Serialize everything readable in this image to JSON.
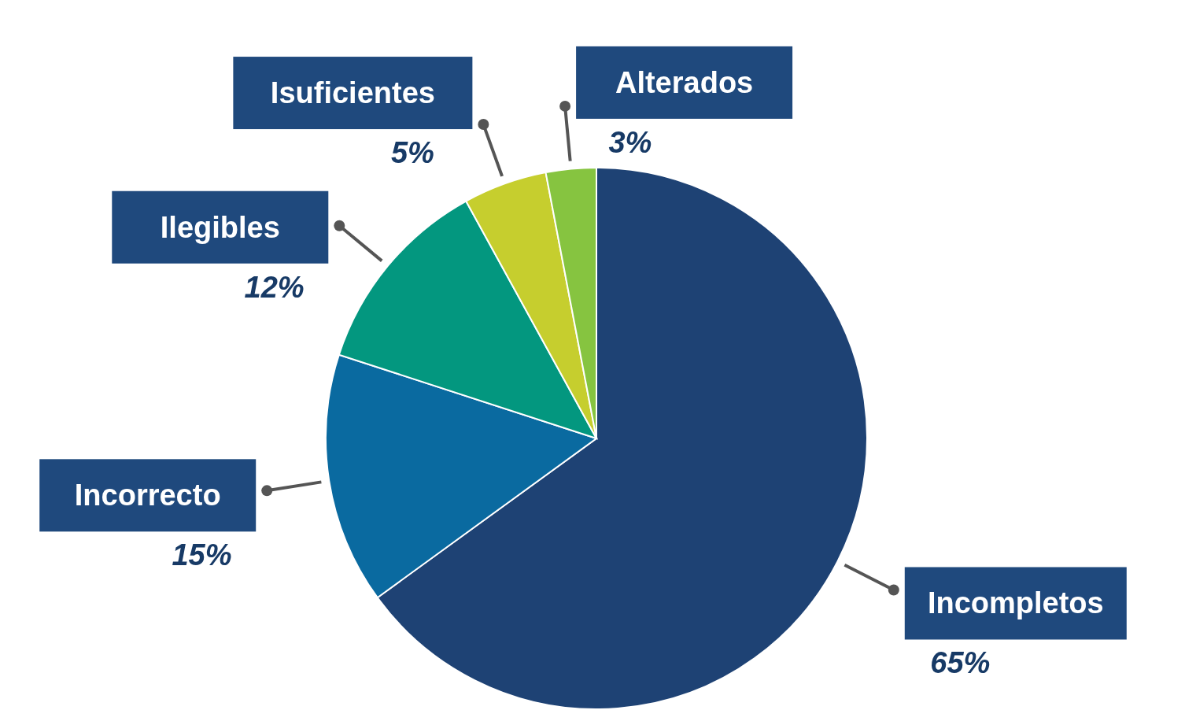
{
  "chart_data": {
    "type": "pie",
    "categories": [
      "Incompletos",
      "Incorrecto",
      "Ilegibles",
      "Isuficientes",
      "Alterados"
    ],
    "values": [
      65,
      15,
      12,
      5,
      3
    ],
    "colors": [
      "#1e4274",
      "#0a6aa0",
      "#03977f",
      "#c6ce2e",
      "#86c440"
    ],
    "value_labels": [
      "65%",
      "15%",
      "12%",
      "5%",
      "3%"
    ],
    "legend": false
  }
}
